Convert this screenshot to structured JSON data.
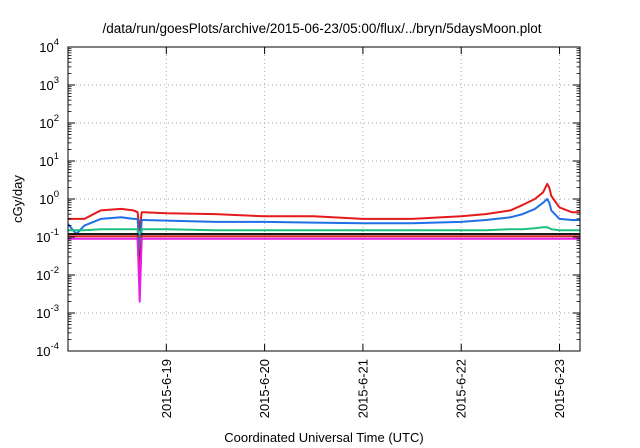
{
  "chart_data": {
    "type": "line",
    "title": "/data/run/goesPlots/archive/2015-06-23/05:00/flux/../bryn/5daysMoon.plot",
    "xlabel": "Coordinated Universal Time (UTC)",
    "ylabel": "cGy/day",
    "x_scale": "time",
    "x_range": [
      "2015-06-18 00:00",
      "2015-06-23 05:00"
    ],
    "x_ticks": [
      "2015-6-19",
      "2015-6-20",
      "2015-6-21",
      "2015-6-22",
      "2015-6-23"
    ],
    "y_scale": "log",
    "ylim": [
      0.0001,
      10000
    ],
    "y_ticks": [
      {
        "base": "10",
        "exp": "-4"
      },
      {
        "base": "10",
        "exp": "-3"
      },
      {
        "base": "10",
        "exp": "-2"
      },
      {
        "base": "10",
        "exp": "-1"
      },
      {
        "base": "10",
        "exp": "0"
      },
      {
        "base": "10",
        "exp": "1"
      },
      {
        "base": "10",
        "exp": "2"
      },
      {
        "base": "10",
        "exp": "3"
      },
      {
        "base": "10",
        "exp": "4"
      }
    ],
    "grid": true,
    "series": [
      {
        "color": "#e41a1c",
        "x": [
          "2015-06-18 00:00",
          "2015-06-18 02:00",
          "2015-06-18 04:00",
          "2015-06-18 08:00",
          "2015-06-18 13:00",
          "2015-06-18 16:00",
          "2015-06-18 17:00",
          "2015-06-18 17:30",
          "2015-06-18 18:00",
          "2015-06-18 18:30",
          "2015-06-19 00:00",
          "2015-06-19 12:00",
          "2015-06-20 00:00",
          "2015-06-20 12:00",
          "2015-06-21 00:00",
          "2015-06-21 12:00",
          "2015-06-22 00:00",
          "2015-06-22 06:00",
          "2015-06-22 12:00",
          "2015-06-22 15:00",
          "2015-06-22 18:00",
          "2015-06-22 20:00",
          "2015-06-22 21:00",
          "2015-06-22 21:30",
          "2015-06-22 22:00",
          "2015-06-23 00:00",
          "2015-06-23 03:00",
          "2015-06-23 05:00"
        ],
        "y": [
          0.3,
          0.3,
          0.3,
          0.5,
          0.55,
          0.5,
          0.45,
          0.15,
          0.45,
          0.45,
          0.42,
          0.4,
          0.35,
          0.35,
          0.3,
          0.3,
          0.35,
          0.4,
          0.5,
          0.7,
          1.0,
          1.5,
          2.5,
          2.0,
          1.2,
          0.6,
          0.45,
          0.45
        ]
      },
      {
        "color": "#1f6fe5",
        "x": [
          "2015-06-18 00:00",
          "2015-06-18 02:00",
          "2015-06-18 04:00",
          "2015-06-18 08:00",
          "2015-06-18 13:00",
          "2015-06-18 16:00",
          "2015-06-18 17:00",
          "2015-06-18 17:30",
          "2015-06-18 18:00",
          "2015-06-18 18:30",
          "2015-06-19 00:00",
          "2015-06-19 12:00",
          "2015-06-20 00:00",
          "2015-06-20 12:00",
          "2015-06-21 00:00",
          "2015-06-21 12:00",
          "2015-06-22 00:00",
          "2015-06-22 06:00",
          "2015-06-22 12:00",
          "2015-06-22 15:00",
          "2015-06-22 18:00",
          "2015-06-22 20:00",
          "2015-06-22 21:00",
          "2015-06-22 21:30",
          "2015-06-22 22:00",
          "2015-06-23 00:00",
          "2015-06-23 03:00",
          "2015-06-23 05:00"
        ],
        "y": [
          0.22,
          0.12,
          0.2,
          0.3,
          0.33,
          0.3,
          0.3,
          0.04,
          0.28,
          0.28,
          0.27,
          0.25,
          0.25,
          0.24,
          0.23,
          0.23,
          0.25,
          0.28,
          0.33,
          0.4,
          0.55,
          0.8,
          1.0,
          0.8,
          0.5,
          0.3,
          0.28,
          0.28
        ]
      },
      {
        "color": "#1fbf7f",
        "x": [
          "2015-06-18 00:00",
          "2015-06-18 02:00",
          "2015-06-18 04:00",
          "2015-06-18 08:00",
          "2015-06-18 13:00",
          "2015-06-18 16:00",
          "2015-06-18 17:00",
          "2015-06-18 17:30",
          "2015-06-18 18:00",
          "2015-06-18 18:30",
          "2015-06-19 00:00",
          "2015-06-19 12:00",
          "2015-06-20 00:00",
          "2015-06-20 12:00",
          "2015-06-21 00:00",
          "2015-06-21 12:00",
          "2015-06-22 00:00",
          "2015-06-22 06:00",
          "2015-06-22 12:00",
          "2015-06-22 15:00",
          "2015-06-22 18:00",
          "2015-06-22 20:00",
          "2015-06-22 21:00",
          "2015-06-22 21:30",
          "2015-06-22 22:00",
          "2015-06-23 00:00",
          "2015-06-23 03:00",
          "2015-06-23 05:00"
        ],
        "y": [
          0.15,
          0.15,
          0.15,
          0.16,
          0.16,
          0.16,
          0.16,
          0.02,
          0.16,
          0.16,
          0.16,
          0.15,
          0.15,
          0.15,
          0.15,
          0.15,
          0.15,
          0.15,
          0.16,
          0.16,
          0.17,
          0.18,
          0.18,
          0.17,
          0.16,
          0.15,
          0.15,
          0.15
        ]
      },
      {
        "color": "#1a1a1a",
        "x": [
          "2015-06-18 00:00",
          "2015-06-18 02:00",
          "2015-06-18 04:00",
          "2015-06-18 08:00",
          "2015-06-18 13:00",
          "2015-06-18 16:00",
          "2015-06-18 17:00",
          "2015-06-18 17:30",
          "2015-06-18 18:00",
          "2015-06-18 18:30",
          "2015-06-19 00:00",
          "2015-06-19 12:00",
          "2015-06-20 00:00",
          "2015-06-20 12:00",
          "2015-06-21 00:00",
          "2015-06-21 12:00",
          "2015-06-22 00:00",
          "2015-06-22 06:00",
          "2015-06-22 12:00",
          "2015-06-22 15:00",
          "2015-06-22 18:00",
          "2015-06-22 20:00",
          "2015-06-22 21:00",
          "2015-06-22 21:30",
          "2015-06-22 22:00",
          "2015-06-23 00:00",
          "2015-06-23 03:00",
          "2015-06-23 05:00"
        ],
        "y": [
          0.12,
          0.12,
          0.12,
          0.12,
          0.12,
          0.12,
          0.12,
          0.012,
          0.12,
          0.12,
          0.12,
          0.12,
          0.12,
          0.12,
          0.12,
          0.12,
          0.12,
          0.12,
          0.12,
          0.12,
          0.12,
          0.12,
          0.12,
          0.12,
          0.12,
          0.12,
          0.12,
          0.12
        ]
      },
      {
        "color": "#d62a2a",
        "x": [
          "2015-06-18 00:00",
          "2015-06-18 02:00",
          "2015-06-18 04:00",
          "2015-06-18 08:00",
          "2015-06-18 13:00",
          "2015-06-18 16:00",
          "2015-06-18 17:00",
          "2015-06-18 17:30",
          "2015-06-18 18:00",
          "2015-06-18 18:30",
          "2015-06-19 00:00",
          "2015-06-19 12:00",
          "2015-06-20 00:00",
          "2015-06-20 12:00",
          "2015-06-21 00:00",
          "2015-06-21 12:00",
          "2015-06-22 00:00",
          "2015-06-22 06:00",
          "2015-06-22 12:00",
          "2015-06-22 15:00",
          "2015-06-22 18:00",
          "2015-06-22 20:00",
          "2015-06-22 21:00",
          "2015-06-22 21:30",
          "2015-06-22 22:00",
          "2015-06-23 00:00",
          "2015-06-23 03:00",
          "2015-06-23 05:00"
        ],
        "y": [
          0.105,
          0.105,
          0.105,
          0.105,
          0.105,
          0.105,
          0.105,
          0.006,
          0.105,
          0.105,
          0.105,
          0.105,
          0.105,
          0.105,
          0.105,
          0.105,
          0.105,
          0.105,
          0.105,
          0.105,
          0.105,
          0.105,
          0.105,
          0.105,
          0.105,
          0.105,
          0.105,
          0.105
        ]
      },
      {
        "color": "#e61ee6",
        "x": [
          "2015-06-18 00:00",
          "2015-06-18 02:00",
          "2015-06-18 04:00",
          "2015-06-18 08:00",
          "2015-06-18 13:00",
          "2015-06-18 16:00",
          "2015-06-18 17:00",
          "2015-06-18 17:30",
          "2015-06-18 18:00",
          "2015-06-18 18:30",
          "2015-06-19 00:00",
          "2015-06-19 12:00",
          "2015-06-20 00:00",
          "2015-06-20 12:00",
          "2015-06-21 00:00",
          "2015-06-21 12:00",
          "2015-06-22 00:00",
          "2015-06-22 06:00",
          "2015-06-22 12:00",
          "2015-06-22 15:00",
          "2015-06-22 18:00",
          "2015-06-22 20:00",
          "2015-06-22 21:00",
          "2015-06-22 21:30",
          "2015-06-22 22:00",
          "2015-06-23 00:00",
          "2015-06-23 03:00",
          "2015-06-23 05:00"
        ],
        "y": [
          0.09,
          0.09,
          0.09,
          0.09,
          0.09,
          0.09,
          0.09,
          0.002,
          0.09,
          0.09,
          0.09,
          0.09,
          0.09,
          0.09,
          0.09,
          0.09,
          0.09,
          0.09,
          0.09,
          0.09,
          0.09,
          0.09,
          0.09,
          0.09,
          0.09,
          0.09,
          0.09,
          0.09
        ]
      }
    ]
  }
}
